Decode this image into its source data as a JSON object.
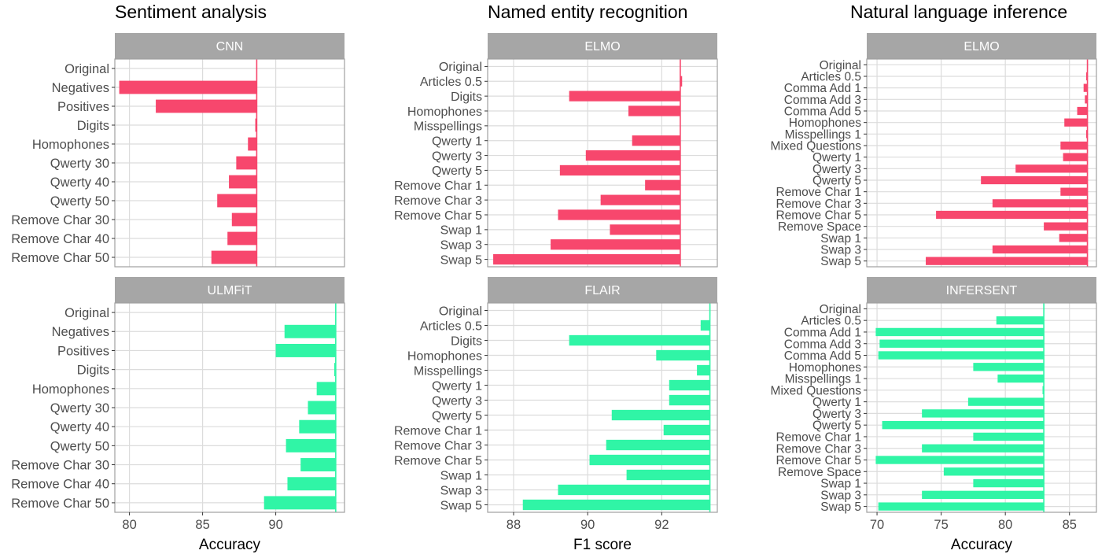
{
  "columns": [
    {
      "title": "Sentiment analysis",
      "xlabel": "Accuracy"
    },
    {
      "title": "Named entity recognition",
      "xlabel": "F1 score"
    },
    {
      "title": "Natural language inference",
      "xlabel": "Accuracy"
    }
  ],
  "colors": {
    "top": "#F7476D",
    "bottom": "#30F5A6",
    "strip": "#A6A6A6",
    "grid": "#DCDCDC",
    "border": "#A0A0A0"
  },
  "chart_data": [
    {
      "type": "bar",
      "task": "Sentiment analysis",
      "model": "CNN",
      "xlabel": "Accuracy",
      "xlim": [
        79,
        94.7
      ],
      "xticks": [
        80,
        85,
        90
      ],
      "baseline": 88.7,
      "categories": [
        "Original",
        "Negatives",
        "Positives",
        "Digits",
        "Homophones",
        "Qwerty 30",
        "Qwerty 40",
        "Qwerty 50",
        "Remove Char 30",
        "Remove Char 40",
        "Remove Char 50"
      ],
      "values": [
        88.7,
        79.3,
        81.8,
        88.6,
        88.1,
        87.3,
        86.8,
        86.0,
        87.0,
        86.7,
        85.6
      ]
    },
    {
      "type": "bar",
      "task": "Sentiment analysis",
      "model": "ULMFiT",
      "xlabel": "Accuracy",
      "xlim": [
        79,
        94.7
      ],
      "xticks": [
        80,
        85,
        90
      ],
      "baseline": 94.1,
      "categories": [
        "Original",
        "Negatives",
        "Positives",
        "Digits",
        "Homophones",
        "Qwerty 30",
        "Qwerty 40",
        "Qwerty 50",
        "Remove Char 30",
        "Remove Char 40",
        "Remove Char 50"
      ],
      "values": [
        94.1,
        90.6,
        90.0,
        94.0,
        92.8,
        92.2,
        91.6,
        90.7,
        91.7,
        90.8,
        89.2
      ]
    },
    {
      "type": "bar",
      "task": "Named entity recognition",
      "model": "ELMO",
      "xlabel": "F1 score",
      "xlim": [
        87.3,
        93.5
      ],
      "xticks": [
        88,
        90,
        92
      ],
      "baseline": 92.5,
      "categories": [
        "Original",
        "Articles 0.5",
        "Digits",
        "Homophones",
        "Misspellings",
        "Qwerty 1",
        "Qwerty 3",
        "Qwerty 5",
        "Remove Char 1",
        "Remove Char 3",
        "Remove Char 5",
        "Swap 1",
        "Swap 3",
        "Swap 5"
      ],
      "values": [
        92.5,
        92.55,
        89.5,
        91.1,
        92.5,
        91.2,
        89.95,
        89.25,
        91.55,
        90.35,
        89.2,
        90.6,
        89.0,
        87.45
      ]
    },
    {
      "type": "bar",
      "task": "Named entity recognition",
      "model": "FLAIR",
      "xlabel": "F1 score",
      "xlim": [
        87.3,
        93.5
      ],
      "xticks": [
        88,
        90,
        92
      ],
      "baseline": 93.3,
      "categories": [
        "Original",
        "Articles 0.5",
        "Digits",
        "Homophones",
        "Misspellings",
        "Qwerty 1",
        "Qwerty 3",
        "Qwerty 5",
        "Remove Char 1",
        "Remove Char 3",
        "Remove Char 5",
        "Swap 1",
        "Swap 3",
        "Swap 5"
      ],
      "values": [
        93.3,
        93.05,
        89.5,
        91.85,
        92.95,
        92.2,
        92.2,
        90.65,
        92.05,
        90.5,
        90.05,
        91.05,
        89.2,
        88.25
      ]
    },
    {
      "type": "bar",
      "task": "Natural language inference",
      "model": "ELMO",
      "xlabel": "Accuracy",
      "xlim": [
        69.2,
        87.1
      ],
      "xticks": [
        70,
        75,
        80,
        85
      ],
      "baseline": 86.4,
      "categories": [
        "Original",
        "Articles 0.5",
        "Comma Add 1",
        "Comma Add 3",
        "Comma Add 5",
        "Homophones",
        "Misspellings 1",
        "Mixed Questions",
        "Qwerty 1",
        "Qwerty 3",
        "Qwerty 5",
        "Remove Char 1",
        "Remove Char 3",
        "Remove Char 5",
        "Remove Space",
        "Swap 1",
        "Swap 3",
        "Swap 5"
      ],
      "values": [
        86.4,
        86.3,
        86.1,
        86.2,
        85.6,
        84.6,
        86.3,
        84.3,
        84.5,
        80.8,
        78.1,
        84.3,
        79.0,
        74.6,
        83.0,
        84.2,
        79.0,
        73.8
      ]
    },
    {
      "type": "bar",
      "task": "Natural language inference",
      "model": "INFERSENT",
      "xlabel": "Accuracy",
      "xlim": [
        69.2,
        87.1
      ],
      "xticks": [
        70,
        75,
        80,
        85
      ],
      "baseline": 83.0,
      "categories": [
        "Original",
        "Articles 0.5",
        "Comma Add 1",
        "Comma Add 3",
        "Comma Add 5",
        "Homophones",
        "Misspellings 1",
        "Mixed Questions",
        "Qwerty 1",
        "Qwerty 3",
        "Qwerty 5",
        "Remove Char 1",
        "Remove Char 3",
        "Remove Char 5",
        "Remove Space",
        "Swap 1",
        "Swap 3",
        "Swap 5"
      ],
      "values": [
        83.0,
        79.3,
        69.9,
        70.2,
        70.1,
        77.5,
        79.4,
        82.9,
        77.1,
        73.5,
        70.4,
        77.5,
        73.5,
        69.9,
        75.2,
        77.5,
        73.5,
        70.1
      ]
    }
  ]
}
